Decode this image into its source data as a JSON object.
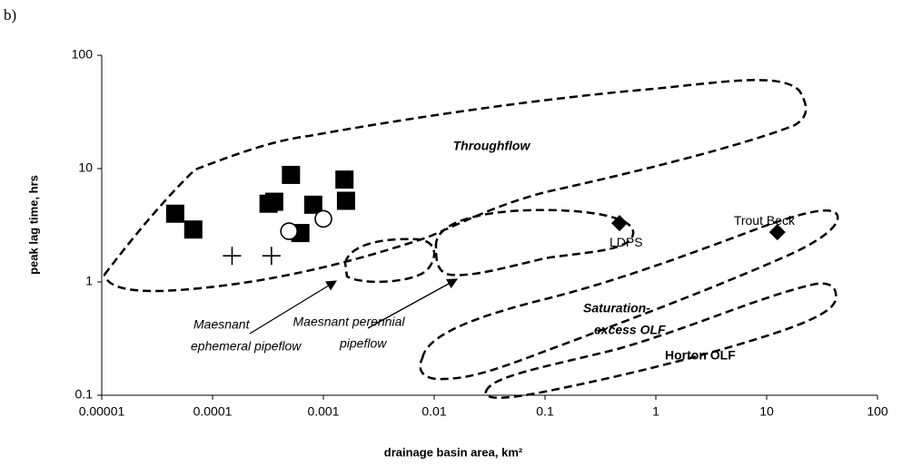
{
  "chart_data": {
    "type": "scatter",
    "panel_label": "b)",
    "x_label": "drainage basin area, km²",
    "y_label": "peak lag time, hrs",
    "log_x": true,
    "log_y": true,
    "xlim": [
      1e-05,
      100
    ],
    "xticks": [
      1e-05,
      0.0001,
      0.001,
      0.01,
      0.1,
      1,
      10,
      100
    ],
    "ylim": [
      0.1,
      100
    ],
    "yticks": [
      0.1,
      1,
      10,
      100
    ],
    "grid": false,
    "series": [
      {
        "marker": "square",
        "color": "#000000",
        "x": [
          4.6e-05,
          6.7e-05,
          0.00032,
          0.00036,
          0.00051,
          0.00081,
          0.00062,
          0.00155,
          0.0016
        ],
        "y": [
          4.0,
          2.9,
          4.9,
          5.1,
          8.8,
          4.8,
          2.7,
          8.0,
          5.2
        ]
      },
      {
        "marker": "circle",
        "color": "#000000",
        "x": [
          0.00049,
          0.001
        ],
        "y": [
          2.8,
          3.6
        ]
      },
      {
        "marker": "plus",
        "color": "#000000",
        "x": [
          0.00015,
          0.00034
        ],
        "y": [
          1.7,
          1.7
        ]
      },
      {
        "marker": "diamond",
        "color": "#000000",
        "x": [
          0.47,
          12.5
        ],
        "y": [
          3.3,
          2.75
        ],
        "point_labels": [
          "LDPS",
          "Trout Beck"
        ]
      }
    ],
    "annotations": [
      {
        "lines": [
          "Throughflow"
        ],
        "style": "bold-italic"
      },
      {
        "lines": [
          "Maesnant",
          "ephemeral pipeflow"
        ],
        "style": "italic"
      },
      {
        "lines": [
          "Maesnant perennial",
          "pipeflow"
        ],
        "style": "italic"
      },
      {
        "lines": [
          "Saturation-",
          "excess OLF"
        ],
        "style": "bold-italic"
      },
      {
        "lines": [
          "Horton OLF"
        ],
        "style": "bold"
      }
    ]
  }
}
